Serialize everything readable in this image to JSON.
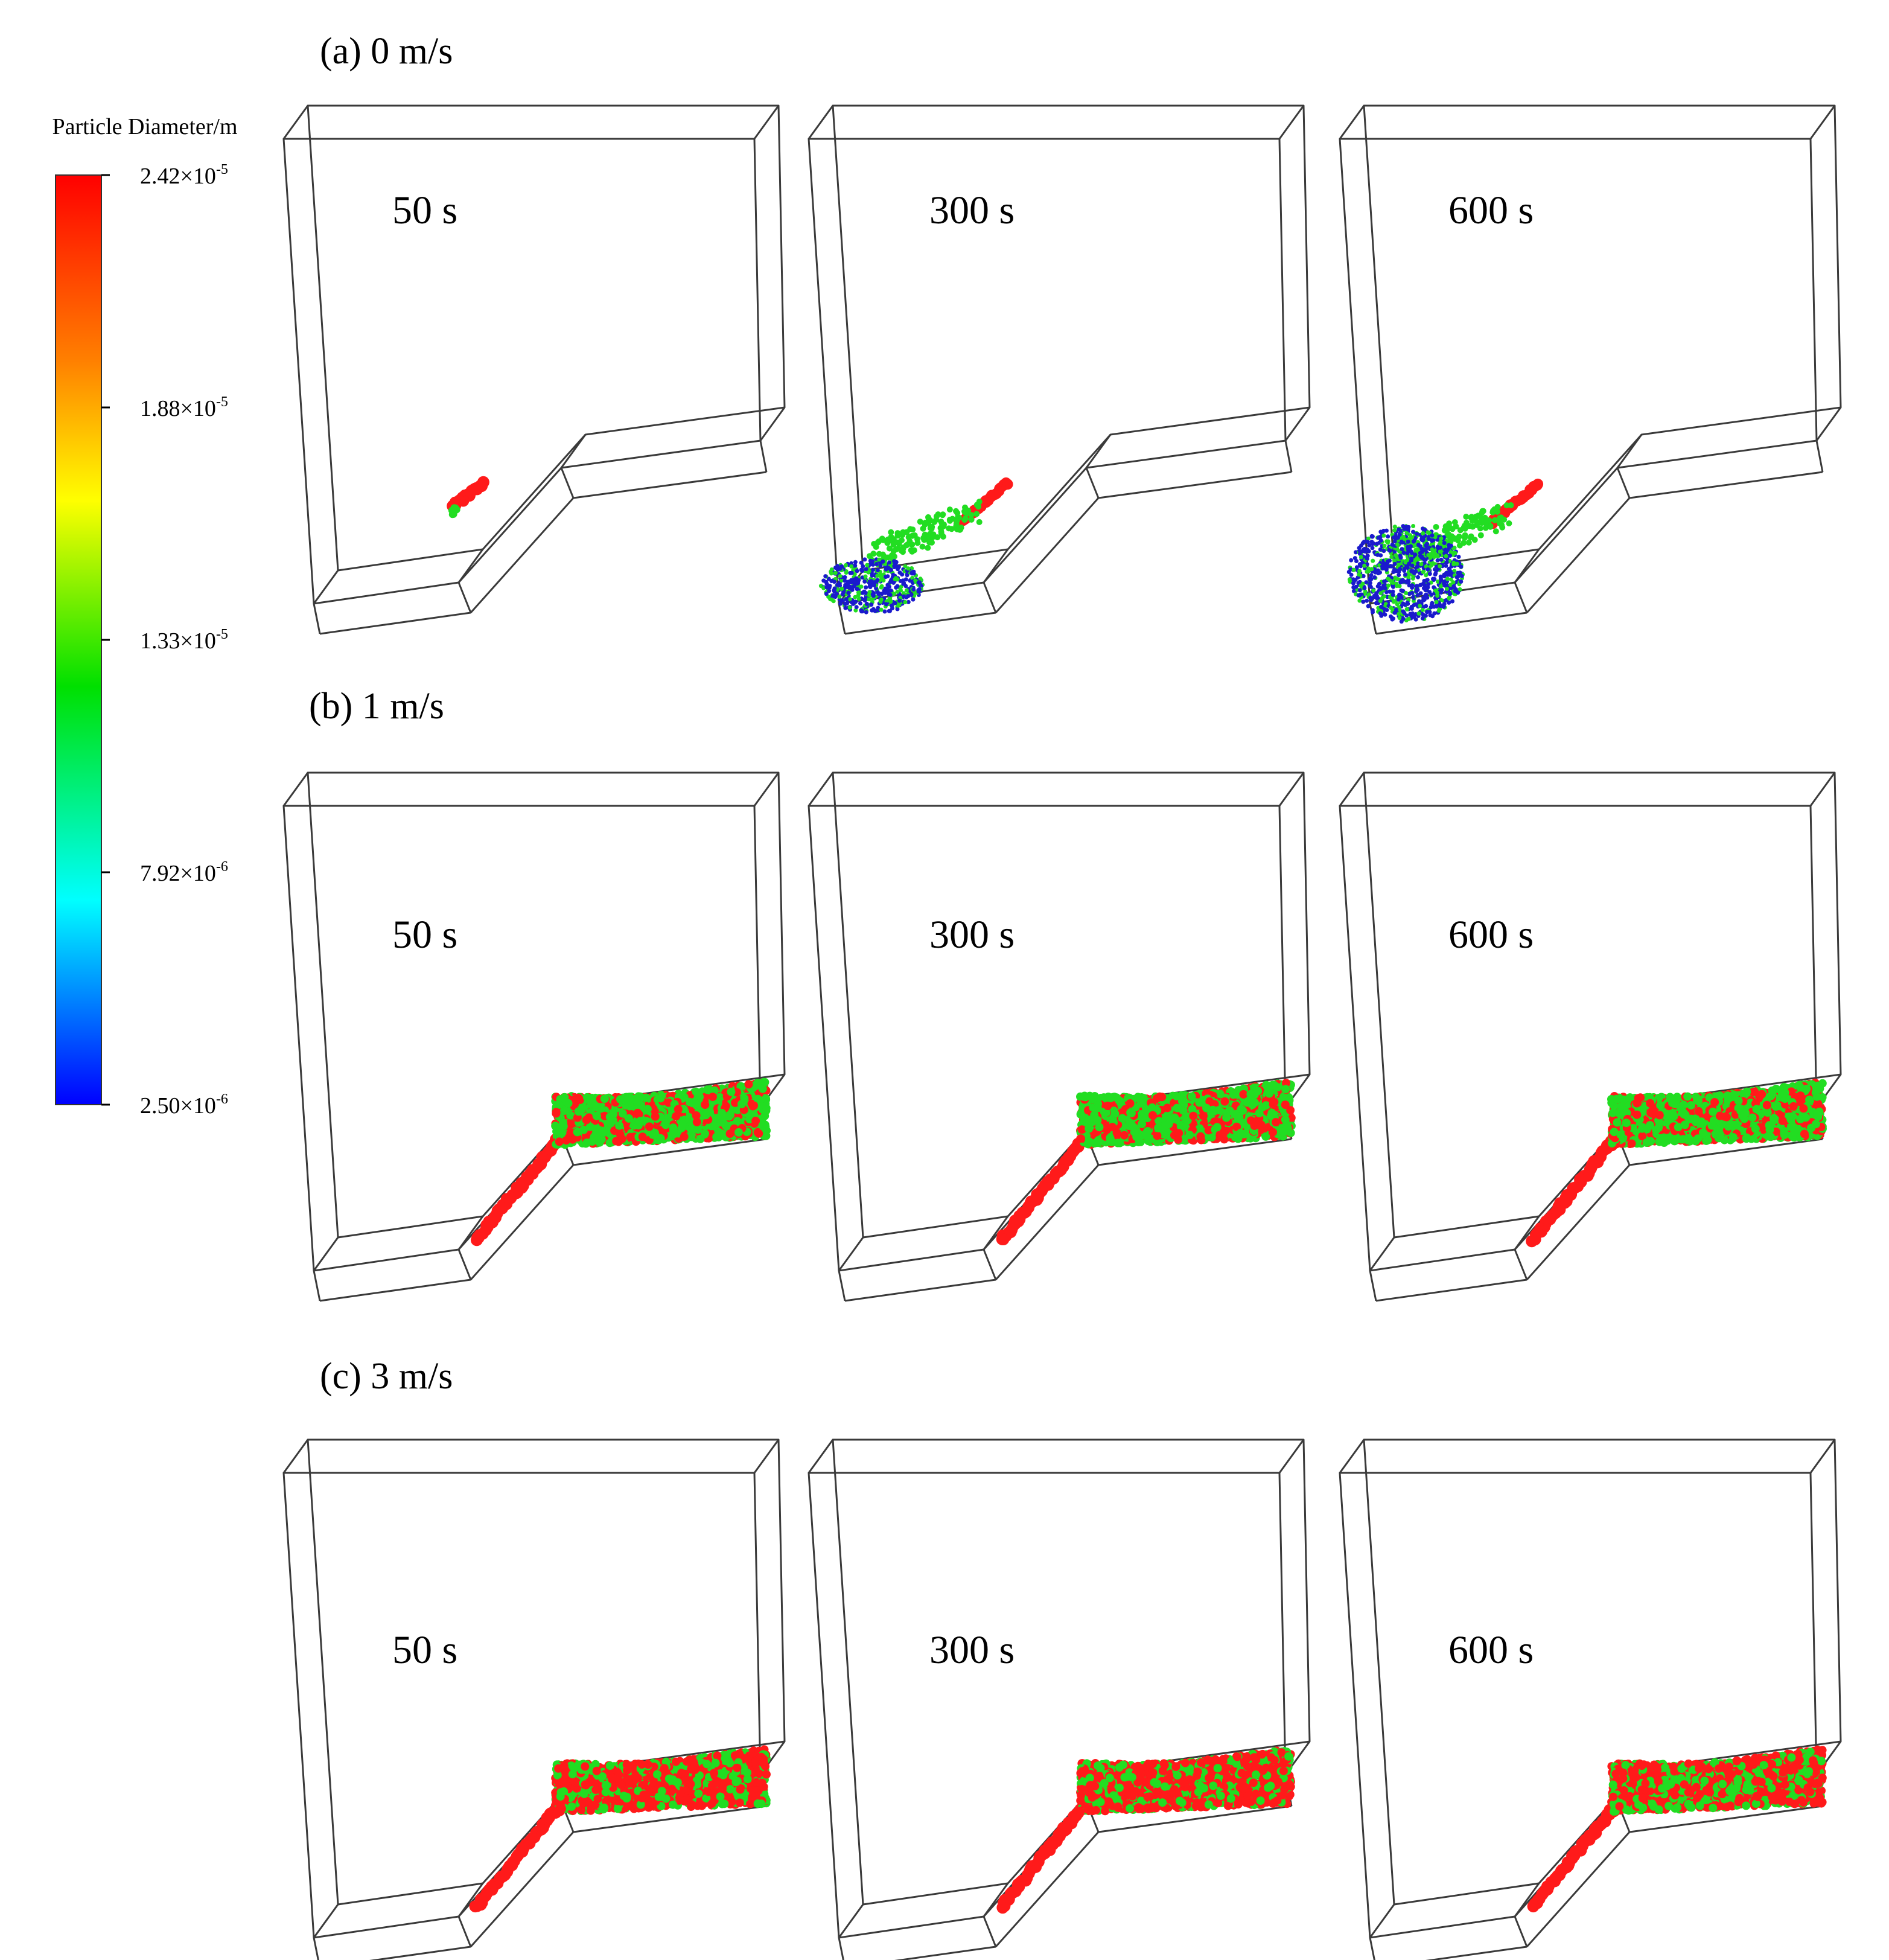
{
  "legend": {
    "title": "Particle Diameter/m",
    "ticks": [
      {
        "mantissa": "2.42×10",
        "exp": "-5"
      },
      {
        "mantissa": "1.88×10",
        "exp": "-5"
      },
      {
        "mantissa": "1.33×10",
        "exp": "-5"
      },
      {
        "mantissa": "7.92×10",
        "exp": "-6"
      },
      {
        "mantissa": "2.50×10",
        "exp": "-6"
      }
    ],
    "colormap": [
      "#ff0000",
      "#ff8000",
      "#ffff00",
      "#00e000",
      "#00ffff",
      "#0000ff"
    ]
  },
  "rows": [
    {
      "label": "(a) 0 m/s",
      "times": [
        "50 s",
        "300 s",
        "600 s"
      ]
    },
    {
      "label": "(b) 1 m/s",
      "times": [
        "50 s",
        "300 s",
        "600 s"
      ]
    },
    {
      "label": "(c) 3 m/s",
      "times": [
        "50 s",
        "300 s",
        "600 s"
      ]
    }
  ],
  "colors": {
    "large_particles": "#ff1a1a",
    "medium_particles": "#22dd22",
    "small_particles": "#1a1acc"
  }
}
